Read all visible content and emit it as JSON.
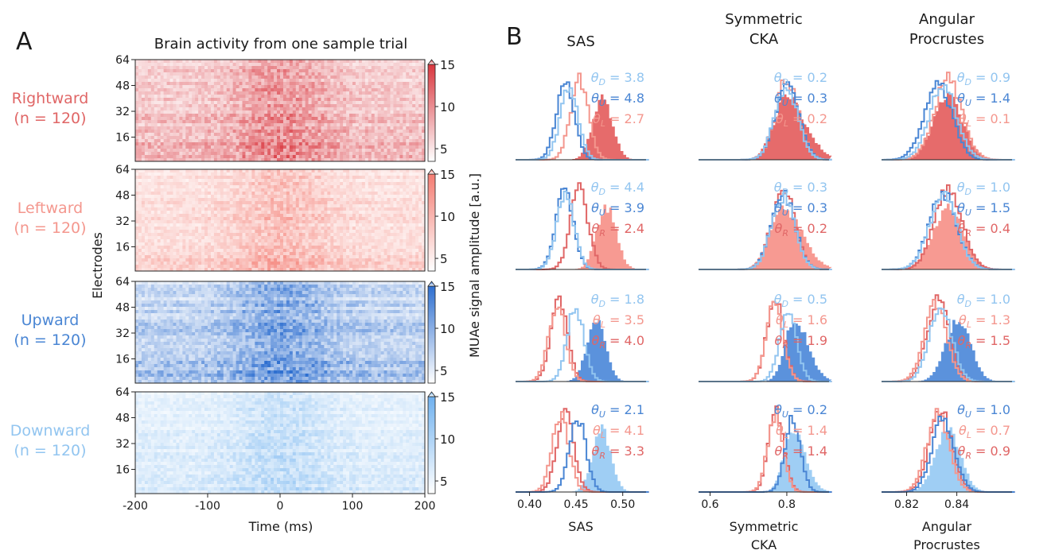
{
  "panel_a": {
    "letter": "A",
    "title": "Brain activity from one sample trial",
    "ylabel": "Electrodes",
    "xlabel": "Time (ms)",
    "colorbar_label": "MUAe signal amplitude [a.u.]",
    "x_ticks": [
      "-200",
      "-100",
      "0",
      "100",
      "200"
    ],
    "y_ticks": [
      "64",
      "48",
      "32",
      "16"
    ],
    "colorbar_ticks": [
      "15",
      "10",
      "5"
    ],
    "rows": [
      {
        "name": "Rightward",
        "n": "(n = 120)",
        "color": "#e06666"
      },
      {
        "name": "Leftward",
        "n": "(n = 120)",
        "color": "#f4978e"
      },
      {
        "name": "Upward",
        "n": "(n = 120)",
        "color": "#4a86d4"
      },
      {
        "name": "Downward",
        "n": "(n = 120)",
        "color": "#92c5f0"
      }
    ]
  },
  "panel_b": {
    "letter": "B",
    "col_titles": [
      [
        "SAS"
      ],
      [
        "Symmetric",
        "CKA"
      ],
      [
        "Angular",
        "Procrustes"
      ]
    ],
    "xlabels": [
      [
        "SAS"
      ],
      [
        "Symmetric",
        "CKA"
      ],
      [
        "Angular",
        "Procrustes"
      ]
    ],
    "x_ticks": [
      [
        "0.40",
        "0.45",
        "0.50"
      ],
      [
        "0.6",
        "0.8"
      ],
      [
        "0.82",
        "0.84"
      ]
    ],
    "stats": [
      [
        [
          {
            "label": "θD",
            "value": "= 3.8",
            "key": "D"
          },
          {
            "label": "θU",
            "value": "= 4.8",
            "key": "U"
          },
          {
            "label": "θL",
            "value": "= 2.7",
            "key": "L"
          }
        ],
        [
          {
            "label": "θD",
            "value": "= 0.2",
            "key": "D"
          },
          {
            "label": "θU",
            "value": "= 0.3",
            "key": "U"
          },
          {
            "label": "θL",
            "value": "= 0.2",
            "key": "L"
          }
        ],
        [
          {
            "label": "θD",
            "value": "= 0.9",
            "key": "D"
          },
          {
            "label": "θU",
            "value": "= 1.4",
            "key": "U"
          },
          {
            "label": "θL",
            "value": "= 0.1",
            "key": "L"
          }
        ]
      ],
      [
        [
          {
            "label": "θD",
            "value": "= 4.4",
            "key": "D"
          },
          {
            "label": "θU",
            "value": "= 3.9",
            "key": "U"
          },
          {
            "label": "θR",
            "value": "= 2.4",
            "key": "R"
          }
        ],
        [
          {
            "label": "θD",
            "value": "= 0.3",
            "key": "D"
          },
          {
            "label": "θU",
            "value": "= 0.3",
            "key": "U"
          },
          {
            "label": "θR",
            "value": "= 0.2",
            "key": "R"
          }
        ],
        [
          {
            "label": "θD",
            "value": "= 1.0",
            "key": "D"
          },
          {
            "label": "θU",
            "value": "= 1.5",
            "key": "U"
          },
          {
            "label": "θR",
            "value": "= 0.4",
            "key": "R"
          }
        ]
      ],
      [
        [
          {
            "label": "θD",
            "value": "= 1.8",
            "key": "D"
          },
          {
            "label": "θL",
            "value": "= 3.5",
            "key": "L"
          },
          {
            "label": "θR",
            "value": "= 4.0",
            "key": "R"
          }
        ],
        [
          {
            "label": "θD",
            "value": "= 0.5",
            "key": "D"
          },
          {
            "label": "θL",
            "value": "= 1.6",
            "key": "L"
          },
          {
            "label": "θR",
            "value": "= 1.9",
            "key": "R"
          }
        ],
        [
          {
            "label": "θD",
            "value": "= 1.0",
            "key": "D"
          },
          {
            "label": "θL",
            "value": "= 1.3",
            "key": "L"
          },
          {
            "label": "θR",
            "value": "= 1.5",
            "key": "R"
          }
        ]
      ],
      [
        [
          {
            "label": "θU",
            "value": "= 2.1",
            "key": "U"
          },
          {
            "label": "θL",
            "value": "= 4.1",
            "key": "L"
          },
          {
            "label": "θR",
            "value": "= 3.3",
            "key": "R"
          }
        ],
        [
          {
            "label": "θU",
            "value": "= 0.2",
            "key": "U"
          },
          {
            "label": "θL",
            "value": "= 1.4",
            "key": "L"
          },
          {
            "label": "θR",
            "value": "= 1.4",
            "key": "R"
          }
        ],
        [
          {
            "label": "θU",
            "value": "= 1.0",
            "key": "U"
          },
          {
            "label": "θL",
            "value": "= 0.7",
            "key": "L"
          },
          {
            "label": "θR",
            "value": "= 0.9",
            "key": "R"
          }
        ]
      ]
    ]
  },
  "colors": {
    "R": "#e06666",
    "L": "#f4978e",
    "U": "#4a86d4",
    "D": "#92c5f0",
    "R_fill": "#e88080",
    "text": "#1a1a1a"
  },
  "chart_data": [
    {
      "type": "heatmap",
      "panel": "A",
      "title": "Brain activity from one sample trial",
      "xlabel": "Time (ms)",
      "ylabel": "Electrodes",
      "xlim": [
        -200,
        200
      ],
      "ylim": [
        1,
        64
      ],
      "color_range": [
        3,
        15
      ],
      "colorbar_label": "MUAe signal amplitude [a.u.]",
      "conditions": [
        "Rightward",
        "Leftward",
        "Upward",
        "Downward"
      ]
    },
    {
      "type": "histogram",
      "panel": "B",
      "metrics": [
        "SAS",
        "Symmetric CKA",
        "Angular Procrustes"
      ],
      "xlims": [
        [
          0.385,
          0.525
        ],
        [
          0.57,
          0.91
        ],
        [
          0.81,
          0.862
        ]
      ],
      "filled_condition_per_row": [
        "Rightward",
        "Leftward",
        "Upward",
        "Downward"
      ],
      "series_centers": [
        {
          "SAS": {
            "R": 0.477,
            "L": 0.452,
            "U": 0.437,
            "D": 0.441
          },
          "Symmetric CKA": {
            "R": 0.795,
            "L": 0.797,
            "U": 0.797,
            "D": 0.795
          },
          "Angular Procrustes": {
            "R": 0.836,
            "L": 0.836,
            "U": 0.832,
            "D": 0.834
          }
        },
        {
          "SAS": {
            "L": 0.481,
            "R": 0.452,
            "U": 0.436,
            "D": 0.437
          },
          "Symmetric CKA": {
            "L": 0.785,
            "R": 0.787,
            "U": 0.787,
            "D": 0.787
          },
          "Angular Procrustes": {
            "L": 0.836,
            "R": 0.836,
            "U": 0.834,
            "D": 0.834
          }
        },
        {
          "SAS": {
            "U": 0.47,
            "L": 0.428,
            "R": 0.43,
            "D": 0.448
          },
          "Symmetric CKA": {
            "U": 0.815,
            "L": 0.765,
            "R": 0.766,
            "D": 0.8
          },
          "Angular Procrustes": {
            "U": 0.84,
            "L": 0.831,
            "R": 0.832,
            "D": 0.833
          }
        },
        {
          "SAS": {
            "D": 0.476,
            "L": 0.432,
            "R": 0.437,
            "U": 0.45
          },
          "Symmetric CKA": {
            "D": 0.81,
            "L": 0.766,
            "R": 0.769,
            "U": 0.812
          },
          "Angular Procrustes": {
            "D": 0.836,
            "L": 0.832,
            "R": 0.833,
            "U": 0.834
          }
        }
      ]
    }
  ]
}
